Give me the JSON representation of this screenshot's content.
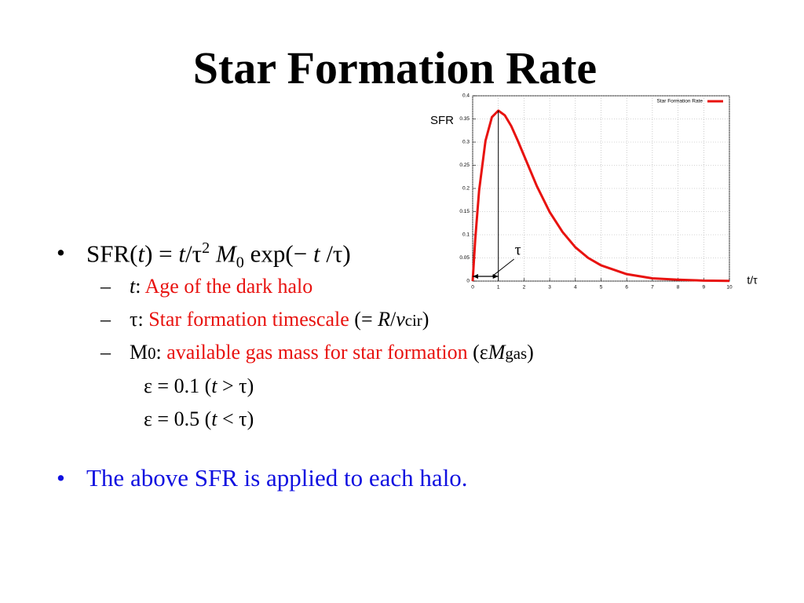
{
  "title": "Star Formation Rate",
  "bullets": [
    {
      "marker": "•",
      "runs": [
        "SFR(",
        "t",
        ") = ",
        "t",
        "/τ",
        "2",
        " ",
        "M",
        "0",
        " exp(− ",
        "t",
        " /τ)"
      ],
      "sub_items": [
        {
          "marker": "–",
          "runs": [
            "t",
            ": ",
            "Age of the dark halo"
          ]
        },
        {
          "marker": "–",
          "runs": [
            "τ",
            ": ",
            "Star formation timescale",
            " (= ",
            "R",
            "/",
            "v",
            "cir",
            ")"
          ]
        },
        {
          "marker": "–",
          "runs": [
            "M",
            "0",
            ": ",
            "available gas mass for star formation",
            " (ε",
            "M",
            "gas",
            ")"
          ]
        }
      ],
      "notes": [
        {
          "runs": [
            "ε = 0.1 (",
            "t",
            " > τ)"
          ]
        },
        {
          "runs": [
            "ε = 0.5 (",
            "t",
            " < τ)"
          ]
        }
      ]
    },
    {
      "marker": "•",
      "runs": [
        "The above SFR is applied to each halo."
      ]
    }
  ],
  "chart_data": {
    "type": "line",
    "ylabel": "SFR",
    "xlabel": "t/τ",
    "x": [
      0,
      0.1,
      0.25,
      0.5,
      0.75,
      1,
      1.25,
      1.5,
      1.75,
      2,
      2.5,
      3,
      3.5,
      4,
      4.5,
      5,
      6,
      7,
      8,
      9,
      10
    ],
    "series": [
      {
        "name": "Star Formation Rate",
        "color": "#e8120f",
        "values": [
          0,
          0.09,
          0.195,
          0.303,
          0.354,
          0.368,
          0.358,
          0.335,
          0.304,
          0.271,
          0.205,
          0.149,
          0.106,
          0.073,
          0.05,
          0.034,
          0.015,
          0.006,
          0.003,
          0.001,
          0.0005
        ]
      }
    ],
    "xlim": [
      0,
      10
    ],
    "xticks": [
      0,
      1,
      2,
      3,
      4,
      5,
      6,
      7,
      8,
      9,
      10
    ],
    "ylim": [
      0,
      0.4
    ],
    "yticks": [
      0,
      0.05,
      0.1,
      0.15,
      0.2,
      0.25,
      0.3,
      0.35,
      0.4
    ],
    "grid": true,
    "legend": "top-right",
    "annotations": [
      {
        "text": "τ",
        "x": 1
      }
    ]
  }
}
